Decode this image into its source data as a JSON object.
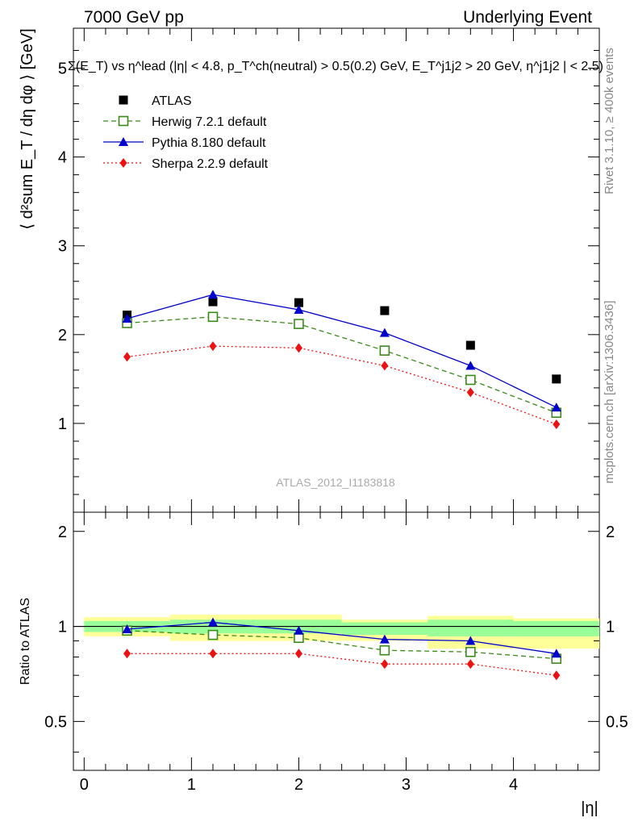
{
  "header": {
    "left": "7000 GeV pp",
    "right": "Underlying Event"
  },
  "side_text": {
    "top": "Rivet 3.1.10, ≥ 400k events",
    "bottom": "mcplots.cern.ch [arXiv:1306.3436]"
  },
  "watermark": "ATLAS_2012_I1183818",
  "colors": {
    "atlas": "#000000",
    "herwig": "#3a8a1a",
    "pythia": "#0000cc",
    "sherpa": "#ee1111",
    "band_inner": "#99ff99",
    "band_outer": "#ffff99"
  },
  "chart_data": [
    {
      "type": "scatter",
      "panel": "main",
      "title": "Σ(E_T) vs η^lead (|η| < 4.8, p_T^ch(neutral) > 0.5(0.2) GeV, E_T^j1j2 > 20 GeV, η^j1j2 | < 2.5)",
      "ylabel": "⟨ d²sum E_T / dη dφ ⟩ [GeV]",
      "xlim": [
        -0.1,
        4.8
      ],
      "ylim": [
        0,
        5.45
      ],
      "y_ticks": [
        "1",
        "2",
        "3",
        "4",
        "5"
      ],
      "x": [
        0.4,
        1.2,
        2.0,
        2.8,
        3.6,
        4.4
      ],
      "series": [
        {
          "name": "ATLAS",
          "values": [
            2.22,
            2.37,
            2.36,
            2.27,
            1.88,
            1.5
          ],
          "marker": "filled-square"
        },
        {
          "name": "Herwig 7.2.1 default",
          "values": [
            2.13,
            2.2,
            2.12,
            1.82,
            1.49,
            1.12
          ],
          "marker": "open-square",
          "line": "dashed"
        },
        {
          "name": "Pythia 8.180 default",
          "values": [
            2.18,
            2.45,
            2.28,
            2.02,
            1.65,
            1.18
          ],
          "marker": "filled-triangle",
          "line": "solid"
        },
        {
          "name": "Sherpa 2.2.9 default",
          "values": [
            1.75,
            1.87,
            1.85,
            1.65,
            1.35,
            0.99
          ],
          "marker": "filled-diamond",
          "line": "dotted"
        }
      ],
      "legend": "top-left"
    },
    {
      "type": "scatter",
      "panel": "ratio",
      "ylabel": "Ratio to ATLAS",
      "xlabel": "|η|",
      "xlim": [
        -0.1,
        4.8
      ],
      "ylim": [
        0.35,
        2.3
      ],
      "y_ticks": [
        "0.5",
        "1",
        "2"
      ],
      "x_ticks": [
        "0",
        "1",
        "2",
        "3",
        "4"
      ],
      "x": [
        0.4,
        1.2,
        2.0,
        2.8,
        3.6,
        4.4
      ],
      "bands": {
        "edges": [
          0.0,
          0.8,
          1.6,
          2.4,
          3.2,
          4.0,
          4.8
        ],
        "inner_low": [
          0.96,
          0.95,
          0.95,
          0.94,
          0.93,
          0.93
        ],
        "inner_high": [
          1.04,
          1.05,
          1.05,
          1.03,
          1.05,
          1.04
        ],
        "outer_low": [
          0.93,
          0.9,
          0.9,
          0.9,
          0.85,
          0.85
        ],
        "outer_high": [
          1.07,
          1.09,
          1.09,
          1.05,
          1.08,
          1.06
        ]
      },
      "series": [
        {
          "name": "Herwig 7.2.1 default",
          "values": [
            0.97,
            0.94,
            0.92,
            0.84,
            0.83,
            0.79
          ]
        },
        {
          "name": "Pythia 8.180 default",
          "values": [
            0.98,
            1.03,
            0.97,
            0.91,
            0.9,
            0.82
          ]
        },
        {
          "name": "Sherpa 2.2.9 default",
          "values": [
            0.82,
            0.82,
            0.82,
            0.76,
            0.76,
            0.7
          ]
        }
      ]
    }
  ]
}
